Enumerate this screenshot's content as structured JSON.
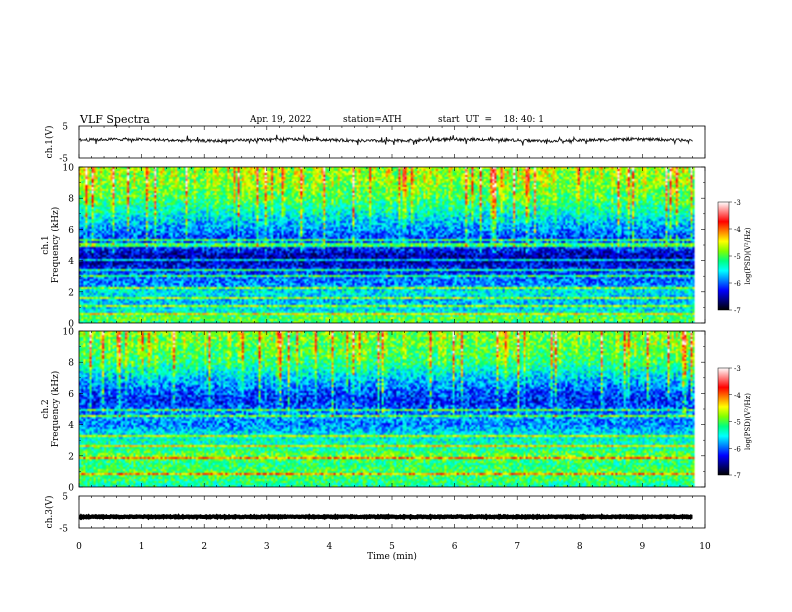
{
  "header": {
    "title": "VLF  Spectra",
    "date": "Apr. 19, 2022",
    "station": "station=ATH",
    "start": "start  UT  =    18: 40: 1"
  },
  "chart_data": [
    {
      "type": "line",
      "name": "ch1-waveform",
      "ylabel": "ch.1(V)",
      "ylim": [
        -5,
        5
      ],
      "yticks": [
        "5",
        "-5"
      ],
      "xlim": [
        0,
        10
      ],
      "x_end": 9.8,
      "baseline": 0.6,
      "noise_amplitude": 0.45,
      "line_color": "#111111"
    },
    {
      "type": "heatmap",
      "name": "ch1-spectrogram",
      "ylabel": "ch.1\nFrequency  (kHz)",
      "ylim": [
        0,
        10
      ],
      "yticks": [
        "0",
        "2",
        "4",
        "6",
        "8",
        "10"
      ],
      "xlim": [
        0,
        10
      ],
      "x_end": 9.8,
      "colorbar": {
        "label": "log(PSD)(V²/Hz)",
        "range": [
          -7,
          -3
        ],
        "ticks": [
          "-3",
          "-4",
          "-5",
          "-6",
          "-7"
        ]
      },
      "frequency_profile_log_psd": [
        [
          0.0,
          -5.2
        ],
        [
          0.3,
          -4.9
        ],
        [
          0.6,
          -5.4
        ],
        [
          1.0,
          -5.6
        ],
        [
          1.5,
          -5.7
        ],
        [
          2.0,
          -5.5
        ],
        [
          2.5,
          -5.9
        ],
        [
          3.0,
          -6.0
        ],
        [
          3.5,
          -6.2
        ],
        [
          4.0,
          -6.5
        ],
        [
          4.5,
          -6.4
        ],
        [
          5.0,
          -6.0
        ],
        [
          5.5,
          -6.1
        ],
        [
          6.0,
          -5.9
        ],
        [
          7.0,
          -5.5
        ],
        [
          8.0,
          -5.1
        ],
        [
          9.0,
          -4.9
        ],
        [
          10.0,
          -4.8
        ]
      ],
      "persistent_lines_khz": [
        0.6,
        1.1,
        1.6,
        2.3,
        3.0,
        3.4,
        4.0,
        5.0,
        5.3
      ]
    },
    {
      "type": "heatmap",
      "name": "ch2-spectrogram",
      "ylabel": "ch.2\nFrequency  (kHz)",
      "ylim": [
        0,
        10
      ],
      "yticks": [
        "0",
        "2",
        "4",
        "6",
        "8",
        "10"
      ],
      "xlim": [
        0,
        10
      ],
      "x_end": 9.8,
      "colorbar": {
        "label": "log(PSD)(V²/Hz)",
        "range": [
          -7,
          -3
        ],
        "ticks": [
          "-3",
          "-4",
          "-5",
          "-6",
          "-7"
        ]
      },
      "frequency_profile_log_psd": [
        [
          0.0,
          -5.3
        ],
        [
          0.5,
          -5.1
        ],
        [
          1.0,
          -5.0
        ],
        [
          1.5,
          -5.2
        ],
        [
          2.0,
          -4.9
        ],
        [
          2.5,
          -5.3
        ],
        [
          3.0,
          -5.4
        ],
        [
          3.5,
          -5.6
        ],
        [
          4.0,
          -5.9
        ],
        [
          4.5,
          -5.8
        ],
        [
          5.0,
          -6.0
        ],
        [
          5.5,
          -6.2
        ],
        [
          6.0,
          -6.1
        ],
        [
          7.0,
          -5.7
        ],
        [
          8.0,
          -5.2
        ],
        [
          9.0,
          -5.0
        ],
        [
          10.0,
          -4.9
        ]
      ],
      "persistent_lines_khz": [
        0.8,
        1.9,
        2.6,
        3.3,
        4.5,
        4.9
      ]
    },
    {
      "type": "line",
      "name": "ch3-waveform",
      "ylabel": "ch.3(V)",
      "ylim": [
        -5,
        5
      ],
      "yticks": [
        "5",
        "-5"
      ],
      "xlim": [
        0,
        10
      ],
      "x_end": 9.8,
      "baseline": -1.5,
      "noise_amplitude": 0.15,
      "line_color": "#000000"
    }
  ],
  "xaxis": {
    "label": "Time  (min)",
    "ticks": [
      "0",
      "1",
      "2",
      "3",
      "4",
      "5",
      "6",
      "7",
      "8",
      "9",
      "10"
    ]
  },
  "colormap": [
    "#000000",
    "#000080",
    "#0000ff",
    "#0080ff",
    "#00ffff",
    "#00ff80",
    "#80ff00",
    "#ffff00",
    "#ff8000",
    "#ff0000",
    "#ff8080",
    "#ffffff"
  ]
}
